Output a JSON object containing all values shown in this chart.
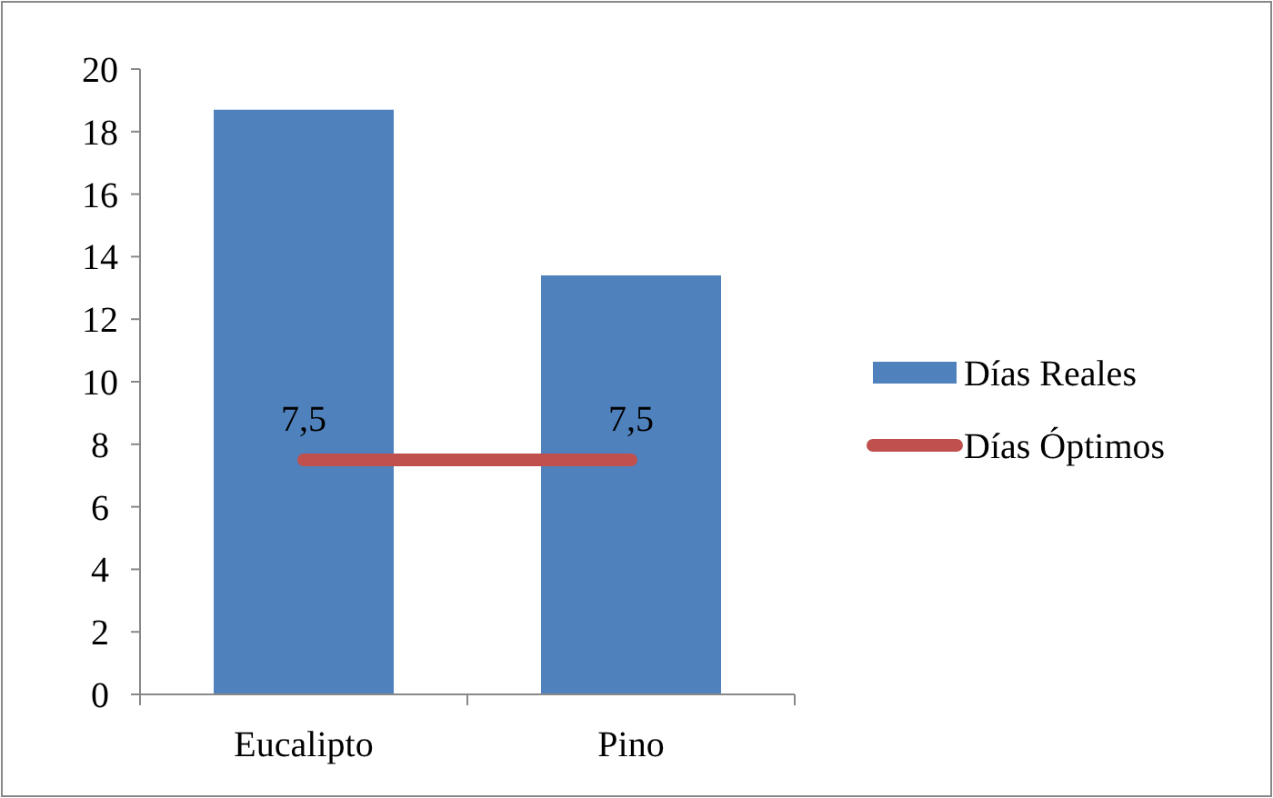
{
  "chart_data": {
    "type": "bar",
    "categories": [
      "Eucalipto",
      "Pino"
    ],
    "series": [
      {
        "name": "Días Reales",
        "color": "#4f81bd",
        "values": [
          18.7,
          13.4
        ]
      },
      {
        "name": "Días Óptimos",
        "type": "line",
        "color": "#c0504d",
        "values": [
          7.5,
          7.5
        ],
        "value_labels": [
          "7,5",
          "7,5"
        ]
      }
    ],
    "ylim": [
      0,
      20
    ],
    "yticks": [
      0,
      2,
      4,
      6,
      8,
      10,
      12,
      14,
      16,
      18,
      20
    ],
    "grid": false,
    "legend": "right",
    "marker": "none"
  }
}
